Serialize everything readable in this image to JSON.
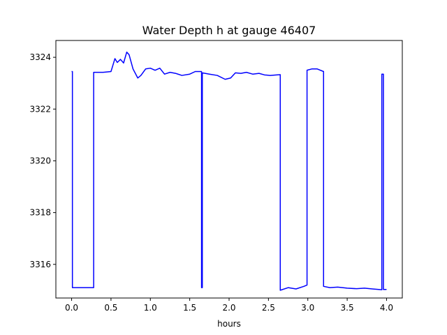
{
  "chart_data": {
    "type": "line",
    "title": "Water Depth h at gauge 46407",
    "xlabel": "hours",
    "ylabel": "",
    "xlim": [
      -0.2,
      4.2
    ],
    "ylim": [
      3314.7,
      3324.65
    ],
    "xticks": [
      0.0,
      0.5,
      1.0,
      1.5,
      2.0,
      2.5,
      3.0,
      3.5,
      4.0
    ],
    "xtick_labels": [
      "0.0",
      "0.5",
      "1.0",
      "1.5",
      "2.0",
      "2.5",
      "3.0",
      "3.5",
      "4.0"
    ],
    "yticks": [
      3316,
      3318,
      3320,
      3322,
      3324
    ],
    "ytick_labels": [
      "3316",
      "3318",
      "3320",
      "3322",
      "3324"
    ],
    "grid": false,
    "series": [
      {
        "color": "#0000ff",
        "points": [
          [
            0.0,
            3323.45
          ],
          [
            0.01,
            3323.45
          ],
          [
            0.01,
            3315.1
          ],
          [
            0.28,
            3315.1
          ],
          [
            0.28,
            3323.42
          ],
          [
            0.4,
            3323.42
          ],
          [
            0.5,
            3323.45
          ],
          [
            0.55,
            3323.95
          ],
          [
            0.58,
            3323.8
          ],
          [
            0.62,
            3323.92
          ],
          [
            0.66,
            3323.78
          ],
          [
            0.7,
            3324.2
          ],
          [
            0.73,
            3324.1
          ],
          [
            0.78,
            3323.55
          ],
          [
            0.84,
            3323.2
          ],
          [
            0.88,
            3323.3
          ],
          [
            0.94,
            3323.55
          ],
          [
            1.0,
            3323.58
          ],
          [
            1.06,
            3323.5
          ],
          [
            1.12,
            3323.58
          ],
          [
            1.18,
            3323.35
          ],
          [
            1.25,
            3323.42
          ],
          [
            1.32,
            3323.38
          ],
          [
            1.4,
            3323.3
          ],
          [
            1.5,
            3323.35
          ],
          [
            1.57,
            3323.45
          ],
          [
            1.65,
            3323.45
          ],
          [
            1.65,
            3315.1
          ],
          [
            1.66,
            3315.1
          ],
          [
            1.66,
            3323.4
          ],
          [
            1.75,
            3323.35
          ],
          [
            1.85,
            3323.3
          ],
          [
            1.95,
            3323.15
          ],
          [
            2.02,
            3323.2
          ],
          [
            2.08,
            3323.4
          ],
          [
            2.15,
            3323.38
          ],
          [
            2.22,
            3323.42
          ],
          [
            2.3,
            3323.35
          ],
          [
            2.38,
            3323.38
          ],
          [
            2.45,
            3323.32
          ],
          [
            2.52,
            3323.3
          ],
          [
            2.6,
            3323.32
          ],
          [
            2.65,
            3323.33
          ],
          [
            2.65,
            3315.0
          ],
          [
            2.75,
            3315.1
          ],
          [
            2.85,
            3315.05
          ],
          [
            2.95,
            3315.15
          ],
          [
            2.99,
            3315.2
          ],
          [
            2.99,
            3323.5
          ],
          [
            3.05,
            3323.55
          ],
          [
            3.12,
            3323.55
          ],
          [
            3.2,
            3323.45
          ],
          [
            3.2,
            3315.15
          ],
          [
            3.28,
            3315.1
          ],
          [
            3.38,
            3315.12
          ],
          [
            3.5,
            3315.08
          ],
          [
            3.62,
            3315.06
          ],
          [
            3.72,
            3315.08
          ],
          [
            3.82,
            3315.05
          ],
          [
            3.94,
            3315.02
          ],
          [
            3.94,
            3323.35
          ],
          [
            3.96,
            3323.35
          ],
          [
            3.96,
            3315.03
          ],
          [
            4.0,
            3315.03
          ]
        ]
      }
    ]
  }
}
